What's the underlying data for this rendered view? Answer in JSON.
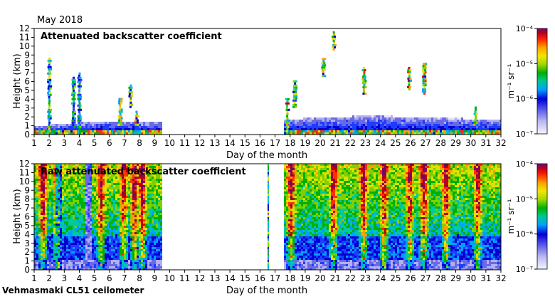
{
  "header": {
    "period": "May 2018"
  },
  "footer": {
    "instrument": "Vehmasmaki CL51 ceilometer"
  },
  "colorscale": {
    "stops": [
      "#e8e8f8",
      "#b0b0ee",
      "#6a6ae6",
      "#1e3cff",
      "#0000d0",
      "#00a0ff",
      "#00c8a0",
      "#00b000",
      "#80d000",
      "#e0e000",
      "#ffa000",
      "#ff3000",
      "#c00000",
      "#800060"
    ],
    "bar_color_top": "#800080"
  },
  "chart_data": [
    {
      "type": "heatmap",
      "title": "Attenuated backscatter coefficient",
      "xlabel": "Day of the month",
      "ylabel": "Height (km)",
      "xlim": [
        1,
        32
      ],
      "ylim": [
        0,
        12
      ],
      "x_ticks": [
        "1",
        "2",
        "3",
        "4",
        "5",
        "6",
        "7",
        "8",
        "9",
        "10",
        "11",
        "12",
        "13",
        "14",
        "15",
        "16",
        "17",
        "18",
        "19",
        "20",
        "21",
        "22",
        "23",
        "24",
        "25",
        "26",
        "27",
        "28",
        "29",
        "30",
        "31",
        "32"
      ],
      "y_ticks": [
        "0",
        "1",
        "2",
        "3",
        "4",
        "5",
        "6",
        "7",
        "8",
        "9",
        "10",
        "11",
        "12"
      ],
      "data_gap": [
        9.5,
        17.5
      ],
      "colorbar": {
        "label": "m⁻¹ sr⁻¹",
        "ticks": [
          "10⁻⁴",
          "10⁻⁵",
          "10⁻⁶",
          "10⁻⁷"
        ],
        "range": [
          1e-07,
          0.0001
        ],
        "scale": "log"
      },
      "features": [
        {
          "day": 2.0,
          "base_km": 0.5,
          "top_km": 8.5,
          "intensity": 0.7
        },
        {
          "day": 3.6,
          "base_km": 0.5,
          "top_km": 6.5,
          "intensity": 0.6
        },
        {
          "day": 4.0,
          "base_km": 0.5,
          "top_km": 7.0,
          "intensity": 0.6
        },
        {
          "day": 6.7,
          "base_km": 1.0,
          "top_km": 4.0,
          "intensity": 0.8
        },
        {
          "day": 7.4,
          "base_km": 3.0,
          "top_km": 5.5,
          "intensity": 0.8
        },
        {
          "day": 7.8,
          "base_km": 1.0,
          "top_km": 2.5,
          "intensity": 0.9
        },
        {
          "day": 17.8,
          "base_km": 0.5,
          "top_km": 4.0,
          "intensity": 0.9
        },
        {
          "day": 18.3,
          "base_km": 3.0,
          "top_km": 6.0,
          "intensity": 0.7
        },
        {
          "day": 20.2,
          "base_km": 6.5,
          "top_km": 8.5,
          "intensity": 0.8
        },
        {
          "day": 20.9,
          "base_km": 9.5,
          "top_km": 11.5,
          "intensity": 0.8
        },
        {
          "day": 22.9,
          "base_km": 4.5,
          "top_km": 7.5,
          "intensity": 0.9
        },
        {
          "day": 25.9,
          "base_km": 5.0,
          "top_km": 7.5,
          "intensity": 1.0
        },
        {
          "day": 26.9,
          "base_km": 4.5,
          "top_km": 8.0,
          "intensity": 0.9
        },
        {
          "day": 30.3,
          "base_km": 1.0,
          "top_km": 3.0,
          "intensity": 0.8
        }
      ],
      "boundary_layer": [
        {
          "day": 1.0,
          "top_km": 0.8
        },
        {
          "day": 5.0,
          "top_km": 1.4
        },
        {
          "day": 9.5,
          "top_km": 1.4
        },
        {
          "day": 17.5,
          "top_km": 1.6
        },
        {
          "day": 23.0,
          "top_km": 2.0
        },
        {
          "day": 28.0,
          "top_km": 1.8
        },
        {
          "day": 32.0,
          "top_km": 1.5
        }
      ]
    },
    {
      "type": "heatmap",
      "title": "Raw attenuated backscatter coefficient",
      "xlabel": "Day of the month",
      "ylabel": "Height (km)",
      "xlim": [
        1,
        32
      ],
      "ylim": [
        0,
        12
      ],
      "x_ticks": [
        "1",
        "2",
        "3",
        "4",
        "5",
        "6",
        "7",
        "8",
        "9",
        "10",
        "11",
        "12",
        "13",
        "14",
        "15",
        "16",
        "17",
        "18",
        "19",
        "20",
        "21",
        "22",
        "23",
        "24",
        "25",
        "26",
        "27",
        "28",
        "29",
        "30",
        "31",
        "32"
      ],
      "y_ticks": [
        "0",
        "1",
        "2",
        "3",
        "4",
        "5",
        "6",
        "7",
        "8",
        "9",
        "10",
        "11",
        "12"
      ],
      "data_gap": [
        9.5,
        17.5
      ],
      "isolated_profile_day": 16.5,
      "colorbar": {
        "label": "m⁻¹ sr⁻¹",
        "ticks": [
          "10⁻⁴",
          "10⁻⁵",
          "10⁻⁶",
          "10⁻⁷"
        ],
        "range": [
          1e-07,
          0.0001
        ],
        "scale": "log"
      },
      "bright_columns": [
        1.5,
        2.5,
        5.4,
        6.9,
        7.6,
        8.1,
        18.0,
        20.8,
        22.8,
        24.2,
        25.9,
        26.8,
        28.3,
        30.4
      ]
    }
  ]
}
